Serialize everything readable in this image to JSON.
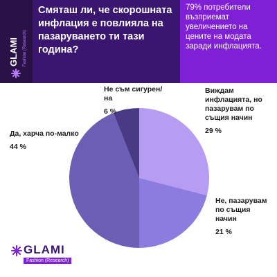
{
  "brand": {
    "name": "GLAMI",
    "tagline": "Fashion (Research)"
  },
  "header": {
    "question": "Смяташ ли, че скорошната инфлация е повлияла на пазаруването ти тази година?",
    "stat": "79% потребители възприемат увеличението на цените на модата заради инфлацията."
  },
  "colors": {
    "dark_strip": "#2a1246",
    "question_bg": "#3a1670",
    "stat_bg": "#7f1fd6"
  },
  "chart_data": {
    "type": "pie",
    "slices": [
      {
        "label": "Виждам инфлацията, но пазарувам по същия начин",
        "pct_label": "29 %",
        "value": 29,
        "color": "#b69cf3"
      },
      {
        "label": "Не, пазарувам по същия начин",
        "pct_label": "21 %",
        "value": 21,
        "color": "#8d7ce0"
      },
      {
        "label": "Да, харча по-малко",
        "pct_label": "44 %",
        "value": 44,
        "color": "#6c5eb5"
      },
      {
        "label": "Не съм сигурен/на",
        "pct_label": "6 %",
        "value": 6,
        "color": "#4a3a86"
      }
    ]
  }
}
